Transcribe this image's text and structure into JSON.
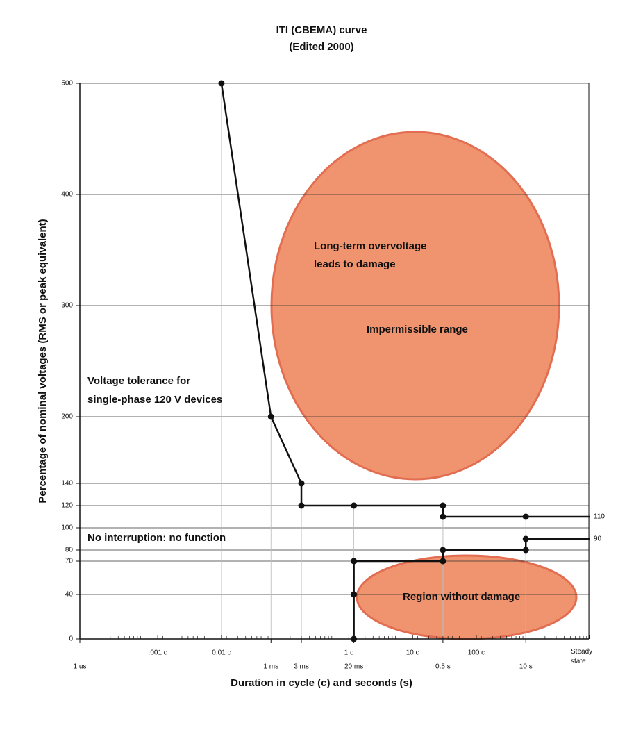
{
  "chart_data": {
    "type": "line",
    "title": [
      "ITI (CBEMA) curve",
      "(Edited 2000)"
    ],
    "x_label": "Duration in cycle (c) and seconds (s)",
    "y_label": "Percentage of nominal voltages (RMS or peak equivalent)",
    "x_log": true,
    "xlim": [
      1e-06,
      100
    ],
    "ylim": [
      0,
      500
    ],
    "yticks": [
      0,
      40,
      70,
      80,
      100,
      120,
      140,
      200,
      300,
      400,
      500
    ],
    "xticks": [
      {
        "value": 1e-06,
        "label": "1 us"
      },
      {
        "value": 0.001,
        "label": "1 ms"
      },
      {
        "value": 0.003,
        "label": "3 ms"
      },
      {
        "value": 0.02,
        "label": "20 ms"
      },
      {
        "value": 0.5,
        "label": "0.5 s"
      },
      {
        "value": 10,
        "label": "10 s"
      }
    ],
    "xticks_cycles": [
      {
        "value": 1.67e-05,
        "label": ".001 c"
      },
      {
        "value": 0.000167,
        "label": "0.01 c"
      },
      {
        "value": 0.0167,
        "label": "1 c"
      },
      {
        "value": 0.167,
        "label": "10 c"
      },
      {
        "value": 1.67,
        "label": "100 c"
      },
      {
        "value": 100,
        "label": "Steady state"
      }
    ],
    "series": [
      {
        "color": "#111111",
        "x": [
          0.000167,
          0.001,
          0.003,
          0.003,
          0.02,
          0.5,
          0.5,
          10,
          100
        ],
        "values": [
          500,
          200,
          140,
          120,
          120,
          120,
          110,
          110,
          110
        ]
      },
      {
        "color": "#111111",
        "x": [
          0.02,
          0.02,
          0.02,
          0.5,
          0.5,
          10,
          10,
          100
        ],
        "values": [
          0,
          40,
          70,
          70,
          80,
          80,
          90,
          90
        ]
      }
    ],
    "annotations": [
      [
        "Long-term overvoltage",
        "leads to damage"
      ],
      [
        "Impermissible range"
      ],
      [
        "Voltage tolerance for",
        "single-phase 120 V devices"
      ],
      [
        "No interruption: no function"
      ],
      [
        "Region without damage"
      ]
    ]
  }
}
